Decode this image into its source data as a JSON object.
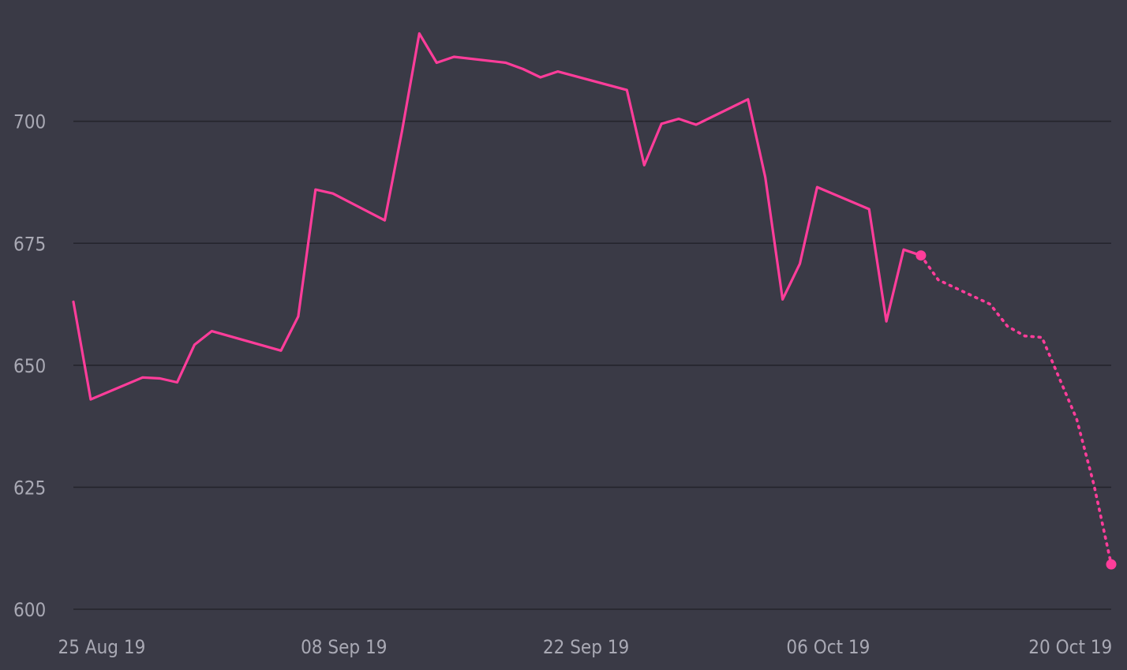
{
  "chart_data": {
    "type": "line",
    "title": "",
    "xlabel": "",
    "ylabel": "",
    "x_domain": [
      "2019-08-24",
      "2019-10-23"
    ],
    "ylim": [
      600,
      720
    ],
    "y_ticks": [
      {
        "value": 600,
        "label": "600"
      },
      {
        "value": 625,
        "label": "625"
      },
      {
        "value": 650,
        "label": "650"
      },
      {
        "value": 675,
        "label": "675"
      },
      {
        "value": 700,
        "label": "700"
      }
    ],
    "x_ticks": [
      {
        "date": "2019-08-25",
        "label": "25 Aug 19"
      },
      {
        "date": "2019-09-08",
        "label": "08 Sep 19"
      },
      {
        "date": "2019-09-22",
        "label": "22 Sep 19"
      },
      {
        "date": "2019-10-06",
        "label": "06 Oct 19"
      },
      {
        "date": "2019-10-20",
        "label": "20 Oct 19"
      }
    ],
    "grid": true,
    "legend": "none",
    "line_color": "#ff3d9a",
    "series": [
      {
        "style": "solid",
        "points": [
          [
            "2019-08-24",
            663
          ],
          [
            "2019-08-25",
            643
          ],
          [
            "2019-08-28",
            647.5
          ],
          [
            "2019-08-29",
            647.3
          ],
          [
            "2019-08-30",
            646.5
          ],
          [
            "2019-08-31",
            654.2
          ],
          [
            "2019-09-01",
            657
          ],
          [
            "2019-09-05",
            653
          ],
          [
            "2019-09-06",
            660
          ],
          [
            "2019-09-07",
            686
          ],
          [
            "2019-09-08",
            685.2
          ],
          [
            "2019-09-11",
            679.7
          ],
          [
            "2019-09-12",
            698
          ],
          [
            "2019-09-13",
            718
          ],
          [
            "2019-09-14",
            712
          ],
          [
            "2019-09-15",
            713.2
          ],
          [
            "2019-09-18",
            712
          ],
          [
            "2019-09-19",
            710.7
          ],
          [
            "2019-09-20",
            709
          ],
          [
            "2019-09-21",
            710.2
          ],
          [
            "2019-09-25",
            706.4
          ],
          [
            "2019-09-26",
            691
          ],
          [
            "2019-09-27",
            699.5
          ],
          [
            "2019-09-28",
            700.5
          ],
          [
            "2019-09-29",
            699.3
          ],
          [
            "2019-10-02",
            704.5
          ],
          [
            "2019-10-03",
            688.5
          ],
          [
            "2019-10-04",
            663.5
          ],
          [
            "2019-10-05",
            670.8
          ],
          [
            "2019-10-06",
            686.5
          ],
          [
            "2019-10-09",
            682
          ],
          [
            "2019-10-10",
            659
          ],
          [
            "2019-10-11",
            673.7
          ],
          [
            "2019-10-12",
            672.5
          ]
        ]
      },
      {
        "style": "dotted",
        "points": [
          [
            "2019-10-12",
            672.5
          ],
          [
            "2019-10-13",
            667.5
          ],
          [
            "2019-10-16",
            662.5
          ],
          [
            "2019-10-17",
            658
          ],
          [
            "2019-10-18",
            656
          ],
          [
            "2019-10-19",
            655.7
          ],
          [
            "2019-10-21",
            639
          ],
          [
            "2019-10-22",
            625.5
          ],
          [
            "2019-10-23",
            609.2
          ]
        ]
      }
    ],
    "markers": [
      [
        "2019-10-12",
        672.5
      ],
      [
        "2019-10-23",
        609.2
      ]
    ]
  }
}
